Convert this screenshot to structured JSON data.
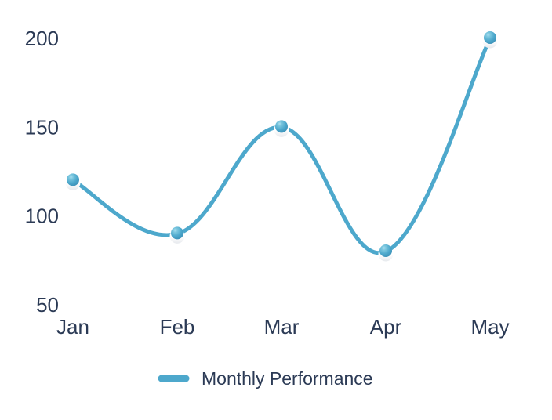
{
  "chart_data": {
    "type": "line",
    "categories": [
      "Jan",
      "Feb",
      "Mar",
      "Apr",
      "May"
    ],
    "series": [
      {
        "name": "Monthly Performance",
        "values": [
          120,
          90,
          150,
          80,
          200
        ]
      }
    ],
    "title": "",
    "xlabel": "",
    "ylabel": "",
    "y_ticks": [
      50,
      100,
      150,
      200
    ],
    "ylim": [
      50,
      200
    ],
    "grid": false,
    "axis_lines": false,
    "legend_position": "bottom-center",
    "line_color": "#4DA8CC",
    "marker_style": "3d-ball",
    "marker_ball_colors": [
      "#AADEF0",
      "#7AC6DE",
      "#4DA8CC",
      "#3B8FB6"
    ],
    "marker_base_colors": [
      "#FFFFFF",
      "#E6E9ED"
    ],
    "label_color": "#2B3A55",
    "background_color": "#FFFFFF"
  },
  "legend": {
    "label": "Monthly Performance"
  }
}
